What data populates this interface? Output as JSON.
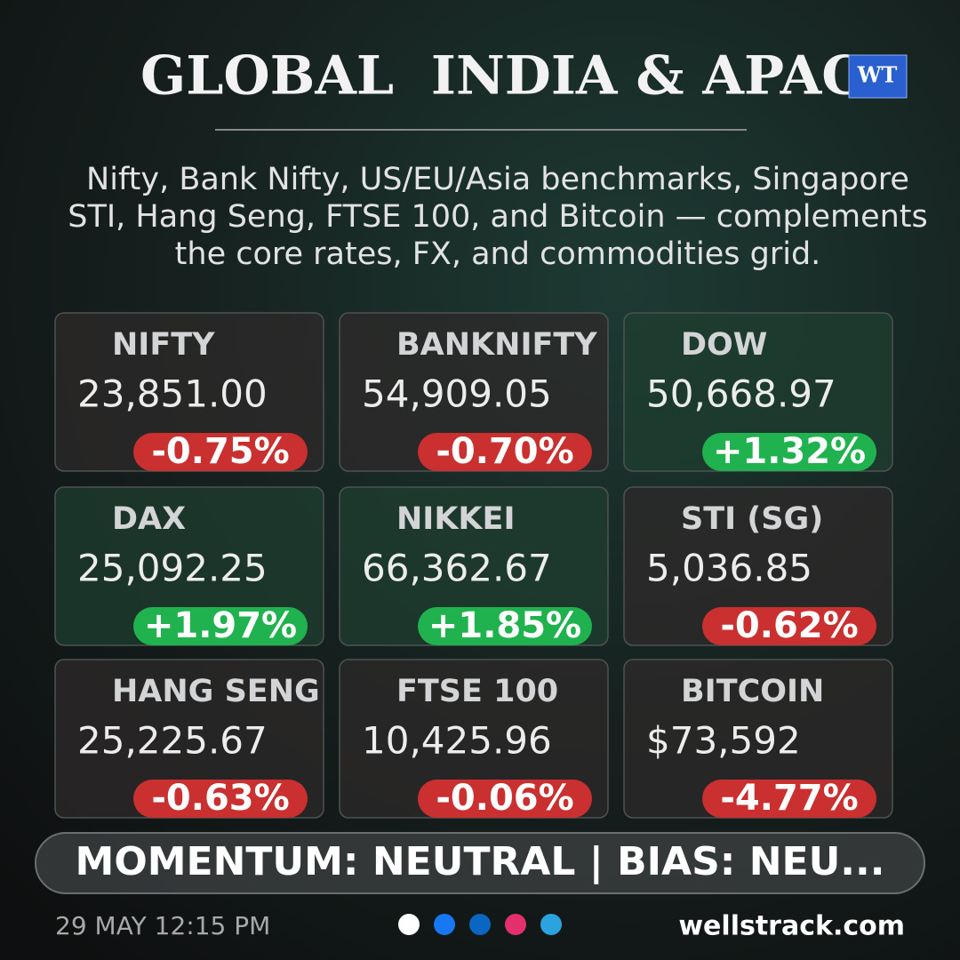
{
  "header": {
    "title": "GLOBAL  INDIA & APAC",
    "logo": "WT",
    "subtitle": [
      "Nifty, Bank Nifty, US/EU/Asia benchmarks, Singapore",
      "STI, Hang Seng, FTSE 100, and Bitcoin — complements",
      "the core rates, FX, and commodities grid."
    ]
  },
  "cards": [
    {
      "name": "NIFTY",
      "value": "23,851.00",
      "change": "-0.75%",
      "badge_color": "#c9302f"
    },
    {
      "name": "BANKNIFTY",
      "value": "54,909.05",
      "change": "-0.70%",
      "badge_color": "#c9302f"
    },
    {
      "name": "DOW",
      "value": "50,668.97",
      "change": "+1.32%",
      "badge_color": "#1fb24e"
    },
    {
      "name": "DAX",
      "value": "25,092.25",
      "change": "+1.97%",
      "badge_color": "#1fb24e"
    },
    {
      "name": "NIKKEI",
      "value": "66,362.67",
      "change": "+1.85%",
      "badge_color": "#1fb24e"
    },
    {
      "name": "STI (SG)",
      "value": "5,036.85",
      "change": "-0.62%",
      "badge_color": "#c9302f"
    },
    {
      "name": "HANG SENG",
      "value": "25,225.67",
      "change": "-0.63%",
      "badge_color": "#c9302f"
    },
    {
      "name": "FTSE 100",
      "value": "10,425.96",
      "change": "-0.06%",
      "badge_color": "#c9302f"
    },
    {
      "name": "BITCOIN",
      "value": "$73,592",
      "change": "-4.77%",
      "badge_color": "#c9302f"
    }
  ],
  "banner": "MOMENTUM: NEUTRAL | BIAS: NEU...",
  "footer": {
    "date": "29 MAY 12:15 PM",
    "site": "wellstrack.com"
  }
}
